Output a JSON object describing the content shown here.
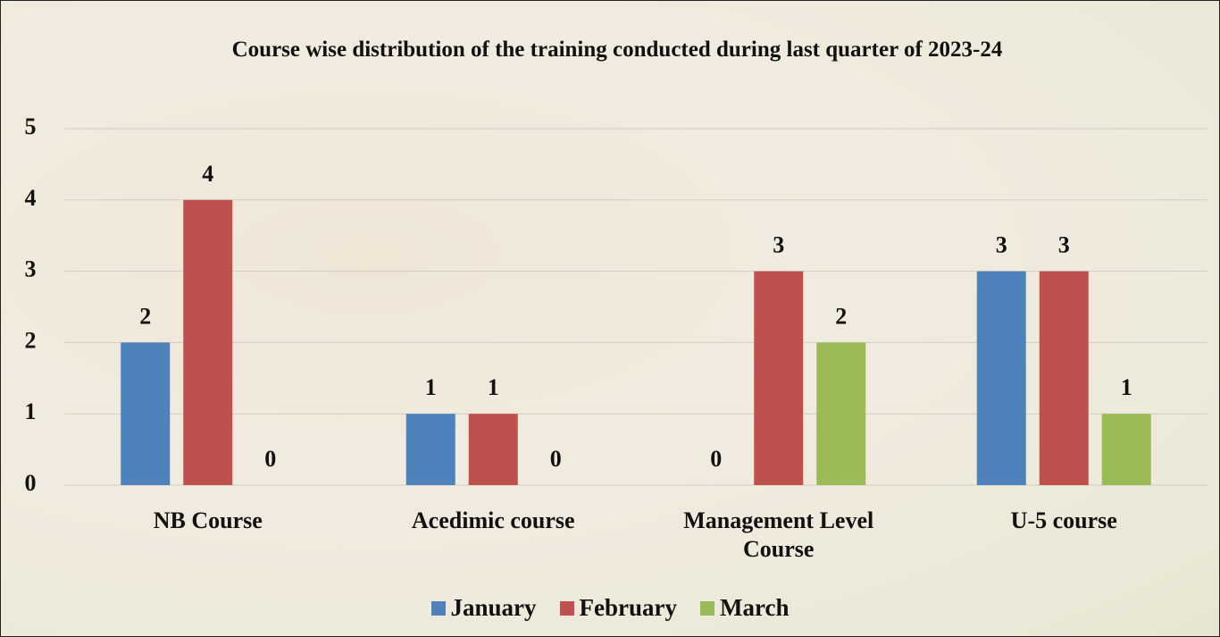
{
  "chart_data": {
    "type": "bar",
    "title": "Course wise distribution of the training conducted during last quarter of 2023-24",
    "categories": [
      "NB Course",
      "Acedimic course",
      "Management Level Course",
      "U-5 course"
    ],
    "series": [
      {
        "name": "January",
        "color": "#4f81bd",
        "values": [
          2,
          1,
          0,
          3
        ]
      },
      {
        "name": "February",
        "color": "#c0504d",
        "values": [
          4,
          1,
          3,
          3
        ]
      },
      {
        "name": "March",
        "color": "#9bbb59",
        "values": [
          0,
          0,
          2,
          1
        ]
      }
    ],
    "ylim": [
      0,
      5
    ],
    "yticks": [
      0,
      1,
      2,
      3,
      4,
      5
    ],
    "grid": true,
    "legend": "bottom"
  }
}
